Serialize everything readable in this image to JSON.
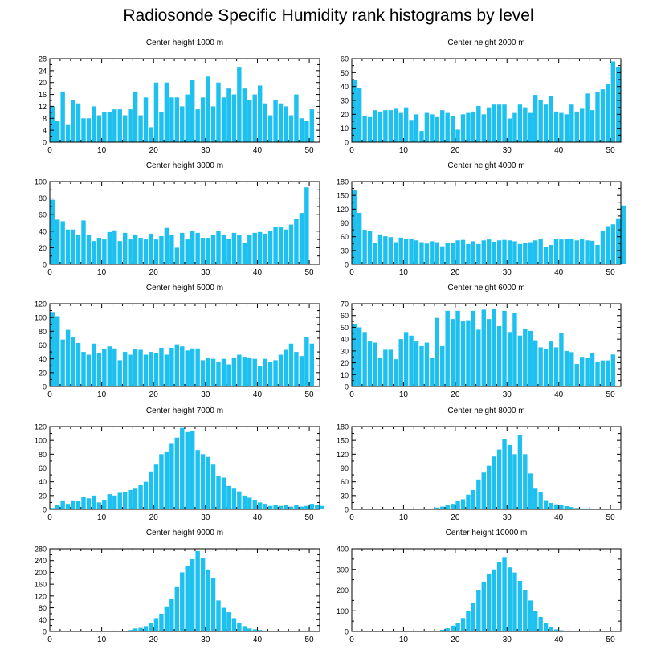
{
  "title": "Radiosonde Specific Humidity rank histograms by level",
  "bar_color": "#1ec0f0",
  "chart_data": [
    {
      "type": "bar",
      "title": "Center height 1000 m",
      "xlim": [
        0,
        52
      ],
      "ylim": [
        0,
        28
      ],
      "yticks": [
        0,
        4,
        8,
        12,
        16,
        20,
        24,
        28
      ],
      "xticks": [
        0,
        10,
        20,
        30,
        40,
        50
      ],
      "values": [
        12,
        7,
        17,
        6,
        14,
        13,
        8,
        8,
        12,
        9,
        10,
        10,
        11,
        11,
        9,
        11,
        17,
        9,
        15,
        5,
        20,
        10,
        20,
        15,
        15,
        12,
        16,
        21,
        11,
        15,
        22,
        12,
        20,
        15,
        18,
        16,
        25,
        18,
        14,
        16,
        19,
        13,
        9,
        14,
        13,
        12,
        9,
        16,
        8,
        7,
        11
      ]
    },
    {
      "type": "bar",
      "title": "Center height 2000 m",
      "xlim": [
        0,
        52
      ],
      "ylim": [
        0,
        60
      ],
      "yticks": [
        0,
        10,
        20,
        30,
        40,
        50,
        60
      ],
      "xticks": [
        0,
        10,
        20,
        30,
        40,
        50
      ],
      "values": [
        45,
        39,
        19,
        18,
        23,
        22,
        23,
        23,
        24,
        21,
        25,
        16,
        20,
        8,
        21,
        20,
        18,
        23,
        21,
        19,
        9,
        20,
        21,
        22,
        26,
        20,
        25,
        27,
        27,
        27,
        17,
        21,
        27,
        25,
        21,
        34,
        30,
        27,
        33,
        22,
        21,
        20,
        27,
        22,
        24,
        35,
        23,
        36,
        38,
        42,
        58,
        54
      ]
    },
    {
      "type": "bar",
      "title": "Center height 3000 m",
      "xlim": [
        0,
        52
      ],
      "ylim": [
        0,
        100
      ],
      "yticks": [
        0,
        20,
        40,
        60,
        80,
        100
      ],
      "xticks": [
        0,
        10,
        20,
        30,
        40,
        50
      ],
      "values": [
        78,
        54,
        52,
        42,
        42,
        36,
        53,
        36,
        28,
        32,
        30,
        39,
        41,
        28,
        38,
        30,
        36,
        32,
        30,
        37,
        30,
        34,
        44,
        35,
        20,
        38,
        30,
        40,
        38,
        32,
        32,
        36,
        40,
        36,
        31,
        38,
        35,
        26,
        36,
        38,
        39,
        37,
        40,
        45,
        45,
        42,
        48,
        55,
        62,
        93
      ]
    },
    {
      "type": "bar",
      "title": "Center height 4000 m",
      "xlim": [
        0,
        52
      ],
      "ylim": [
        0,
        180
      ],
      "yticks": [
        0,
        30,
        60,
        90,
        120,
        150,
        180
      ],
      "xticks": [
        0,
        10,
        20,
        30,
        40,
        50
      ],
      "values": [
        162,
        112,
        75,
        73,
        47,
        65,
        61,
        59,
        48,
        58,
        55,
        56,
        52,
        48,
        45,
        50,
        48,
        39,
        47,
        47,
        52,
        53,
        44,
        50,
        44,
        52,
        54,
        49,
        52,
        53,
        52,
        50,
        44,
        47,
        48,
        52,
        56,
        38,
        42,
        55,
        54,
        55,
        55,
        52,
        55,
        52,
        51,
        42,
        72,
        83,
        87,
        100,
        128
      ]
    },
    {
      "type": "bar",
      "title": "Center height 5000 m",
      "xlim": [
        0,
        52
      ],
      "ylim": [
        0,
        120
      ],
      "yticks": [
        0,
        20,
        40,
        60,
        80,
        100,
        120
      ],
      "xticks": [
        0,
        10,
        20,
        30,
        40,
        50
      ],
      "values": [
        108,
        102,
        68,
        82,
        71,
        63,
        50,
        46,
        62,
        49,
        54,
        58,
        55,
        38,
        50,
        46,
        54,
        53,
        46,
        50,
        48,
        56,
        46,
        56,
        61,
        58,
        52,
        55,
        55,
        38,
        42,
        40,
        36,
        40,
        32,
        41,
        46,
        43,
        42,
        40,
        29,
        40,
        35,
        38,
        46,
        53,
        62,
        50,
        44,
        72,
        62
      ]
    },
    {
      "type": "bar",
      "title": "Center height 6000 m",
      "xlim": [
        0,
        52
      ],
      "ylim": [
        0,
        70
      ],
      "yticks": [
        0,
        10,
        20,
        30,
        40,
        50,
        60,
        70
      ],
      "xticks": [
        0,
        10,
        20,
        30,
        40,
        50
      ],
      "values": [
        53,
        50,
        46,
        38,
        37,
        24,
        31,
        31,
        23,
        40,
        46,
        43,
        38,
        34,
        37,
        24,
        58,
        34,
        64,
        57,
        64,
        55,
        56,
        64,
        48,
        65,
        57,
        66,
        51,
        64,
        46,
        62,
        43,
        49,
        47,
        39,
        33,
        32,
        38,
        33,
        45,
        30,
        29,
        19,
        25,
        24,
        28,
        21,
        22,
        22,
        27
      ]
    },
    {
      "type": "bar",
      "title": "Center height 7000 m",
      "xlim": [
        0,
        52
      ],
      "ylim": [
        0,
        120
      ],
      "yticks": [
        0,
        20,
        40,
        60,
        80,
        100,
        120
      ],
      "xticks": [
        0,
        10,
        20,
        30,
        40,
        50
      ],
      "values": [
        2,
        7,
        13,
        8,
        13,
        12,
        18,
        16,
        20,
        10,
        14,
        22,
        20,
        24,
        25,
        28,
        30,
        35,
        40,
        55,
        65,
        80,
        84,
        95,
        104,
        118,
        112,
        114,
        86,
        80,
        76,
        65,
        48,
        46,
        34,
        30,
        26,
        20,
        17,
        14,
        10,
        8,
        5,
        6,
        5,
        6,
        4,
        6,
        4,
        5,
        8,
        6,
        5
      ]
    },
    {
      "type": "bar",
      "title": "Center height 8000 m",
      "xlim": [
        0,
        52
      ],
      "ylim": [
        0,
        180
      ],
      "yticks": [
        0,
        30,
        60,
        90,
        120,
        150,
        180
      ],
      "xticks": [
        0,
        10,
        20,
        30,
        40,
        50
      ],
      "values": [
        0,
        0,
        0,
        0,
        0,
        0,
        0,
        0,
        0,
        0,
        0,
        0,
        0,
        0,
        1,
        2,
        4,
        6,
        10,
        12,
        18,
        22,
        32,
        42,
        65,
        80,
        95,
        115,
        130,
        152,
        140,
        120,
        162,
        120,
        78,
        45,
        38,
        20,
        14,
        11,
        9,
        7,
        5,
        3,
        2,
        2,
        1,
        1,
        1,
        0,
        0
      ]
    },
    {
      "type": "bar",
      "title": "Center height 9000 m",
      "xlim": [
        0,
        52
      ],
      "ylim": [
        0,
        280
      ],
      "yticks": [
        0,
        40,
        80,
        120,
        160,
        200,
        240,
        280
      ],
      "xticks": [
        0,
        10,
        20,
        30,
        40,
        50
      ],
      "values": [
        0,
        0,
        0,
        0,
        0,
        0,
        0,
        0,
        0,
        0,
        0,
        0,
        0,
        0,
        2,
        5,
        10,
        12,
        18,
        30,
        45,
        60,
        85,
        110,
        150,
        200,
        222,
        245,
        272,
        250,
        210,
        180,
        105,
        80,
        65,
        45,
        30,
        18,
        10,
        7,
        5,
        3,
        2,
        1,
        1,
        0,
        0,
        0,
        0,
        0,
        0
      ]
    },
    {
      "type": "bar",
      "title": "Center height 10000 m",
      "xlim": [
        0,
        52
      ],
      "ylim": [
        0,
        400
      ],
      "yticks": [
        0,
        100,
        200,
        300,
        400
      ],
      "xticks": [
        0,
        10,
        20,
        30,
        40,
        50
      ],
      "values": [
        0,
        0,
        0,
        0,
        0,
        0,
        0,
        0,
        0,
        0,
        0,
        0,
        0,
        0,
        1,
        2,
        4,
        8,
        15,
        28,
        42,
        65,
        100,
        140,
        200,
        240,
        280,
        300,
        335,
        360,
        310,
        285,
        245,
        200,
        150,
        100,
        70,
        40,
        20,
        10,
        6,
        3,
        2,
        1,
        1,
        0,
        0,
        0,
        0,
        0,
        0
      ]
    }
  ]
}
